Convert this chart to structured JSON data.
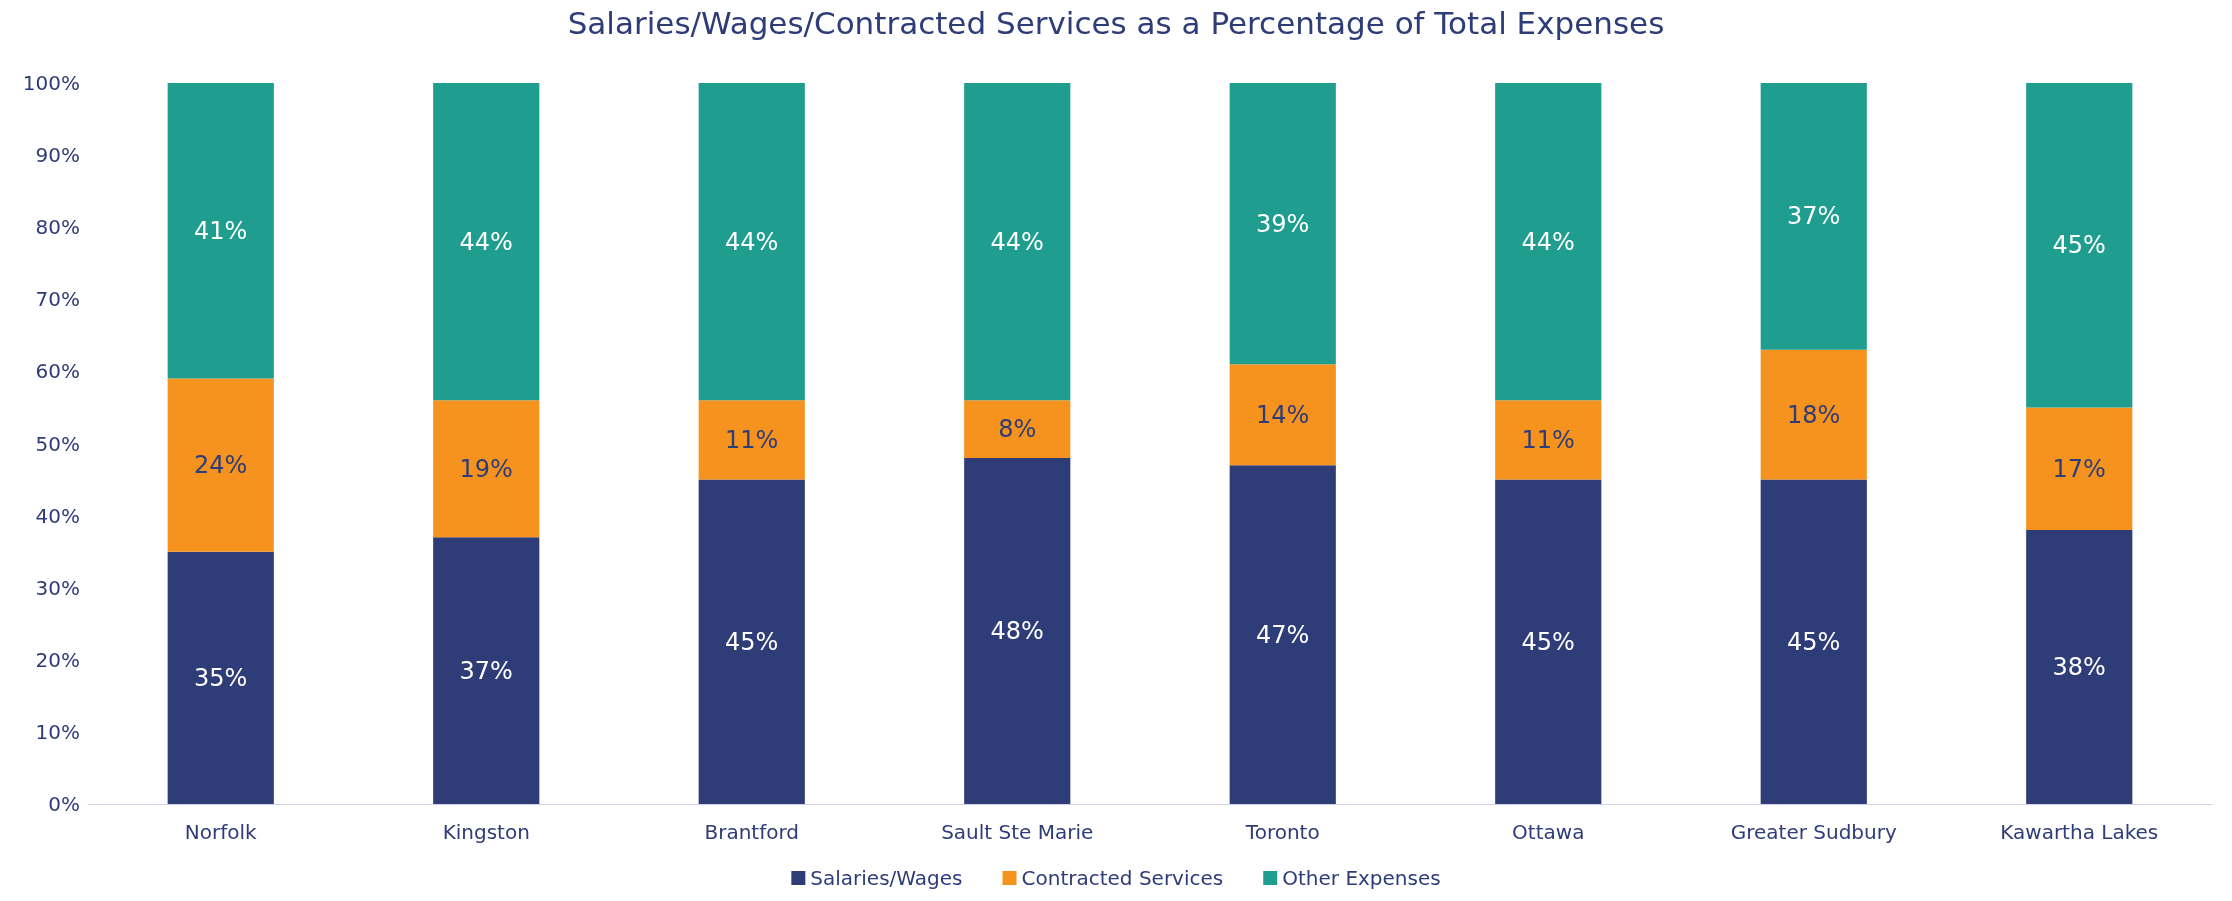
{
  "chart_data": {
    "type": "bar",
    "title": "Salaries/Wages/Contracted Services as a Percentage of Total Expenses",
    "categories": [
      "Norfolk",
      "Kingston",
      "Brantford",
      "Sault Ste Marie",
      "Toronto",
      "Ottawa",
      "Greater Sudbury",
      "Kawartha Lakes"
    ],
    "stacked": true,
    "series": [
      {
        "name": "Salaries/Wages",
        "color": "#2e3c78",
        "values": [
          35,
          37,
          45,
          48,
          47,
          45,
          45,
          38
        ],
        "value_labels": [
          "35%",
          "37%",
          "45%",
          "48%",
          "47%",
          "45%",
          "45%",
          "38%"
        ]
      },
      {
        "name": "Contracted Services",
        "color": "#f5931e",
        "values": [
          24,
          19,
          11,
          8,
          14,
          11,
          18,
          17
        ],
        "value_labels": [
          "24%",
          "19%",
          "11%",
          "8%",
          "14%",
          "11%",
          "18%",
          "17%"
        ]
      },
      {
        "name": "Other Expenses",
        "color": "#1f9e8f",
        "values": [
          41,
          44,
          44,
          44,
          39,
          44,
          37,
          45
        ],
        "value_labels": [
          "41%",
          "44%",
          "44%",
          "44%",
          "39%",
          "44%",
          "37%",
          "45%"
        ]
      }
    ],
    "ylim": [
      0,
      100
    ],
    "yticks": [
      {
        "value": 0,
        "label": "0%"
      },
      {
        "value": 10,
        "label": "10%"
      },
      {
        "value": 20,
        "label": "20%"
      },
      {
        "value": 30,
        "label": "30%"
      },
      {
        "value": 40,
        "label": "40%"
      },
      {
        "value": 50,
        "label": "50%"
      },
      {
        "value": 60,
        "label": "60%"
      },
      {
        "value": 70,
        "label": "70%"
      },
      {
        "value": 80,
        "label": "80%"
      },
      {
        "value": 90,
        "label": "90%"
      },
      {
        "value": 100,
        "label": "100%"
      }
    ],
    "grid": false,
    "legend": "bottom"
  }
}
